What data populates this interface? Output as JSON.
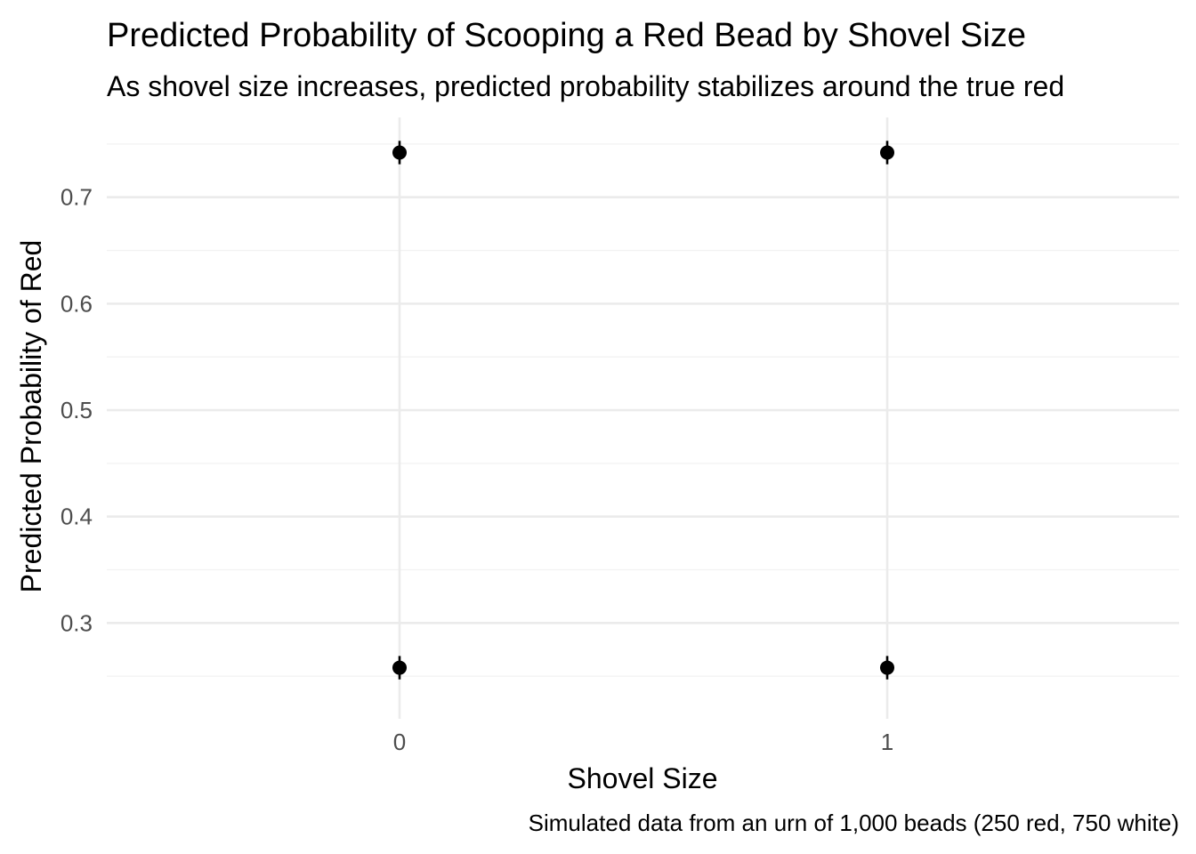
{
  "chart_data": {
    "type": "scatter",
    "title": "Predicted Probability of Scooping a Red Bead by Shovel Size",
    "subtitle": "As shovel size increases, predicted probability stabilizes around the true red",
    "xlabel": "Shovel Size",
    "ylabel": "Predicted Probability of Red",
    "caption": "Simulated data from an urn of 1,000 beads (250 red, 750 white)",
    "x_categories": [
      "0",
      "1"
    ],
    "y_ticks": [
      0.3,
      0.4,
      0.5,
      0.6,
      0.7
    ],
    "ylim": [
      0.21,
      0.775
    ],
    "grid": true,
    "points": [
      {
        "x": "0",
        "y": 0.742,
        "ymin": 0.731,
        "ymax": 0.753
      },
      {
        "x": "0",
        "y": 0.258,
        "ymin": 0.247,
        "ymax": 0.269
      },
      {
        "x": "1",
        "y": 0.742,
        "ymin": 0.731,
        "ymax": 0.753
      },
      {
        "x": "1",
        "y": 0.258,
        "ymin": 0.247,
        "ymax": 0.269
      }
    ]
  }
}
